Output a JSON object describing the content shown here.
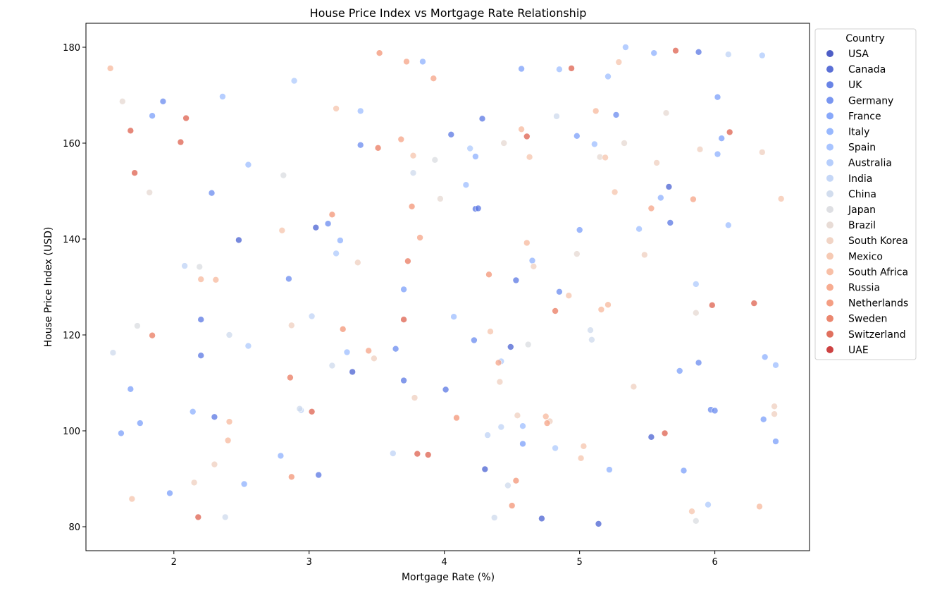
{
  "chart_data": {
    "type": "scatter",
    "title": "House Price Index vs Mortgage Rate Relationship",
    "xlabel": "Mortgage Rate (%)",
    "ylabel": "House Price Index (USD)",
    "xlim": [
      1.35,
      6.7
    ],
    "ylim": [
      75,
      185
    ],
    "xticks": [
      2,
      3,
      4,
      5,
      6
    ],
    "yticks": [
      80,
      100,
      120,
      140,
      160,
      180
    ],
    "grid": false,
    "legend": {
      "title": "Country",
      "position": "right"
    },
    "series": [
      {
        "name": "USA",
        "color": "#3b4cc0",
        "points": []
      },
      {
        "name": "Canada",
        "color": "#4961d2",
        "points": [
          [
            2.48,
            139.8
          ],
          [
            3.05,
            142.4
          ],
          [
            3.32,
            112.3
          ],
          [
            4.3,
            92.0
          ],
          [
            4.49,
            117.5
          ],
          [
            4.72,
            81.7
          ],
          [
            5.14,
            80.6
          ],
          [
            5.66,
            150.9
          ],
          [
            5.53,
            98.7
          ]
        ]
      },
      {
        "name": "UK",
        "color": "#5977e3",
        "points": [
          [
            2.2,
            123.2
          ],
          [
            2.2,
            115.7
          ],
          [
            2.3,
            102.9
          ],
          [
            3.07,
            90.8
          ],
          [
            3.7,
            110.5
          ],
          [
            4.01,
            108.6
          ],
          [
            4.05,
            161.8
          ],
          [
            4.28,
            165.1
          ],
          [
            4.23,
            146.3
          ],
          [
            4.25,
            146.4
          ],
          [
            4.53,
            131.4
          ],
          [
            5.67,
            143.4
          ],
          [
            5.88,
            179.0
          ]
        ]
      },
      {
        "name": "Germany",
        "color": "#6a8bef",
        "points": [
          [
            1.92,
            168.7
          ],
          [
            2.28,
            149.6
          ],
          [
            2.85,
            131.7
          ],
          [
            3.14,
            143.2
          ],
          [
            3.38,
            159.6
          ],
          [
            3.64,
            117.1
          ],
          [
            4.22,
            118.9
          ],
          [
            4.85,
            129.0
          ],
          [
            5.27,
            165.9
          ],
          [
            5.88,
            114.2
          ],
          [
            5.97,
            104.4
          ],
          [
            6.0,
            104.2
          ]
        ]
      },
      {
        "name": "France",
        "color": "#7b9ff9",
        "points": [
          [
            1.61,
            99.5
          ],
          [
            1.68,
            108.7
          ],
          [
            1.84,
            165.7
          ],
          [
            1.75,
            101.6
          ],
          [
            1.97,
            87.0
          ],
          [
            3.7,
            129.5
          ],
          [
            4.57,
            175.5
          ],
          [
            4.58,
            97.3
          ],
          [
            4.98,
            161.5
          ],
          [
            5.0,
            141.9
          ],
          [
            5.74,
            112.5
          ],
          [
            5.77,
            91.7
          ],
          [
            6.05,
            161.0
          ],
          [
            6.02,
            169.6
          ],
          [
            6.45,
            97.8
          ],
          [
            6.36,
            102.4
          ]
        ]
      },
      {
        "name": "Italy",
        "color": "#8db0fe",
        "points": [
          [
            2.14,
            104.0
          ],
          [
            2.52,
            88.9
          ],
          [
            2.79,
            94.8
          ],
          [
            3.23,
            139.7
          ],
          [
            3.84,
            177.0
          ],
          [
            4.23,
            157.2
          ],
          [
            4.65,
            135.5
          ],
          [
            5.22,
            91.9
          ],
          [
            5.55,
            178.8
          ],
          [
            5.6,
            148.6
          ],
          [
            6.02,
            157.7
          ],
          [
            6.37,
            115.4
          ]
        ]
      },
      {
        "name": "Spain",
        "color": "#9ebeff",
        "points": [
          [
            2.36,
            169.7
          ],
          [
            2.55,
            155.5
          ],
          [
            3.28,
            116.4
          ],
          [
            3.38,
            166.7
          ],
          [
            4.07,
            123.8
          ],
          [
            4.16,
            151.3
          ],
          [
            4.58,
            101.0
          ],
          [
            4.85,
            175.4
          ],
          [
            5.11,
            159.8
          ],
          [
            5.34,
            180.0
          ],
          [
            5.44,
            142.1
          ],
          [
            5.21,
            173.9
          ],
          [
            6.1,
            142.9
          ],
          [
            6.45,
            113.7
          ]
        ]
      },
      {
        "name": "Australia",
        "color": "#aec9fc",
        "points": [
          [
            2.55,
            117.7
          ],
          [
            2.89,
            173.0
          ],
          [
            3.2,
            137.0
          ],
          [
            4.19,
            158.9
          ],
          [
            4.42,
            114.5
          ],
          [
            4.82,
            96.4
          ],
          [
            5.95,
            84.6
          ],
          [
            5.86,
            130.6
          ],
          [
            6.35,
            178.3
          ]
        ]
      },
      {
        "name": "India",
        "color": "#bfd3f6",
        "points": [
          [
            2.08,
            134.4
          ],
          [
            2.94,
            104.3
          ],
          [
            3.62,
            95.3
          ],
          [
            3.02,
            123.9
          ],
          [
            4.32,
            99.1
          ],
          [
            4.42,
            100.8
          ],
          [
            6.1,
            178.5
          ]
        ]
      },
      {
        "name": "China",
        "color": "#cdd9ec",
        "points": [
          [
            1.55,
            116.3
          ],
          [
            2.38,
            82.0
          ],
          [
            2.41,
            120.0
          ],
          [
            2.93,
            104.6
          ],
          [
            3.17,
            113.6
          ],
          [
            3.77,
            153.8
          ],
          [
            4.37,
            81.9
          ],
          [
            4.47,
            88.6
          ],
          [
            4.83,
            165.6
          ],
          [
            5.08,
            121.0
          ],
          [
            5.09,
            119.0
          ]
        ]
      },
      {
        "name": "Japan",
        "color": "#dadce0",
        "points": [
          [
            1.73,
            121.9
          ],
          [
            2.19,
            134.2
          ],
          [
            2.81,
            153.3
          ],
          [
            3.93,
            156.5
          ],
          [
            4.62,
            118.0
          ],
          [
            5.86,
            81.2
          ]
        ]
      },
      {
        "name": "Brazil",
        "color": "#e5d8d1",
        "points": [
          [
            1.62,
            168.7
          ],
          [
            1.82,
            149.7
          ],
          [
            3.97,
            148.4
          ],
          [
            4.44,
            160.0
          ],
          [
            4.98,
            136.9
          ],
          [
            5.15,
            157.1
          ],
          [
            5.33,
            160.0
          ],
          [
            5.64,
            166.3
          ],
          [
            5.86,
            124.6
          ]
        ]
      },
      {
        "name": "South Korea",
        "color": "#efcfbf",
        "points": [
          [
            2.15,
            89.2
          ],
          [
            2.3,
            93.0
          ],
          [
            2.87,
            122.0
          ],
          [
            3.36,
            135.1
          ],
          [
            3.48,
            115.1
          ],
          [
            3.78,
            106.9
          ],
          [
            4.41,
            110.2
          ],
          [
            4.54,
            103.2
          ],
          [
            4.66,
            134.3
          ],
          [
            4.78,
            102.0
          ],
          [
            5.4,
            109.2
          ],
          [
            5.48,
            136.7
          ],
          [
            5.57,
            155.9
          ],
          [
            5.89,
            158.7
          ],
          [
            6.35,
            158.1
          ],
          [
            6.44,
            105.1
          ],
          [
            6.44,
            103.5
          ]
        ]
      },
      {
        "name": "Mexico",
        "color": "#f5c4ac",
        "points": [
          [
            1.69,
            85.8
          ],
          [
            2.8,
            141.8
          ],
          [
            3.2,
            167.2
          ],
          [
            3.77,
            157.4
          ],
          [
            4.34,
            120.7
          ],
          [
            4.63,
            157.1
          ],
          [
            4.92,
            128.2
          ],
          [
            5.01,
            94.3
          ],
          [
            5.03,
            96.8
          ],
          [
            5.19,
            157.0
          ],
          [
            5.26,
            149.8
          ],
          [
            5.29,
            176.9
          ],
          [
            5.83,
            83.2
          ],
          [
            6.49,
            148.4
          ]
        ]
      },
      {
        "name": "South Africa",
        "color": "#f7b89c",
        "points": [
          [
            1.53,
            175.6
          ],
          [
            2.2,
            131.6
          ],
          [
            2.31,
            131.5
          ],
          [
            2.41,
            101.9
          ],
          [
            2.4,
            98.0
          ],
          [
            4.57,
            162.9
          ],
          [
            4.61,
            139.2
          ],
          [
            4.75,
            103.0
          ],
          [
            5.16,
            125.3
          ],
          [
            5.21,
            126.3
          ],
          [
            5.12,
            166.7
          ],
          [
            6.33,
            84.2
          ]
        ]
      },
      {
        "name": "Russia",
        "color": "#f6a385",
        "points": [
          [
            3.44,
            116.7
          ],
          [
            3.68,
            160.8
          ],
          [
            3.72,
            177.0
          ],
          [
            3.82,
            140.3
          ],
          [
            3.92,
            173.5
          ],
          [
            4.4,
            114.2
          ],
          [
            4.76,
            101.6
          ],
          [
            5.53,
            146.4
          ],
          [
            5.84,
            148.3
          ]
        ]
      },
      {
        "name": "Netherlands",
        "color": "#f39475",
        "points": [
          [
            2.87,
            90.4
          ],
          [
            3.17,
            145.1
          ],
          [
            3.25,
            121.2
          ],
          [
            3.52,
            178.8
          ],
          [
            3.76,
            146.8
          ],
          [
            4.09,
            102.7
          ],
          [
            4.33,
            132.6
          ],
          [
            4.5,
            84.4
          ],
          [
            4.53,
            89.6
          ]
        ]
      },
      {
        "name": "Sweden",
        "color": "#e97a5f",
        "points": [
          [
            1.84,
            119.9
          ],
          [
            2.86,
            111.1
          ],
          [
            3.51,
            159.0
          ],
          [
            3.73,
            135.4
          ],
          [
            4.82,
            125.0
          ]
        ]
      },
      {
        "name": "Switzerland",
        "color": "#dd604d",
        "points": [
          [
            1.68,
            162.6
          ],
          [
            1.71,
            153.8
          ],
          [
            2.05,
            160.2
          ],
          [
            2.09,
            165.2
          ],
          [
            2.18,
            82.0
          ],
          [
            3.02,
            104.0
          ],
          [
            3.7,
            123.2
          ],
          [
            3.8,
            95.2
          ],
          [
            3.88,
            95.0
          ],
          [
            4.61,
            161.4
          ],
          [
            4.94,
            175.6
          ],
          [
            5.63,
            99.5
          ],
          [
            5.71,
            179.3
          ],
          [
            5.98,
            126.2
          ],
          [
            6.11,
            162.3
          ],
          [
            6.29,
            126.6
          ]
        ]
      },
      {
        "name": "UAE",
        "color": "#c82d2d",
        "points": []
      }
    ]
  }
}
